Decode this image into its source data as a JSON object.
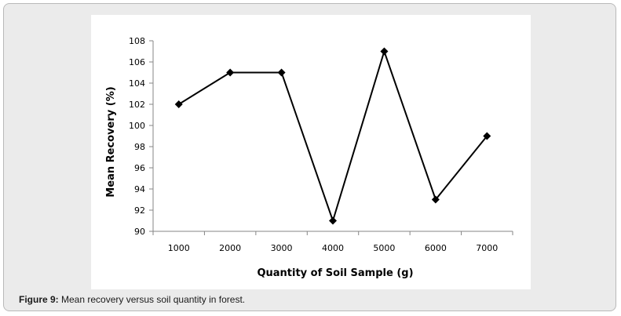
{
  "caption": {
    "label": "Figure 9:",
    "text": " Mean recovery versus soil quantity in forest."
  },
  "chart_data": {
    "type": "line",
    "title": "",
    "xlabel": "Quantity of Soil Sample (g)",
    "ylabel": "Mean Recovery (%)",
    "categories": [
      "1000",
      "2000",
      "3000",
      "4000",
      "5000",
      "6000",
      "7000"
    ],
    "values": [
      102,
      105,
      105,
      91,
      107,
      93,
      99
    ],
    "ylim": [
      90,
      108
    ],
    "yticks": [
      "90",
      "92",
      "94",
      "96",
      "98",
      "100",
      "102",
      "104",
      "106",
      "108"
    ],
    "marker": "diamond",
    "grid": false,
    "legend": "none",
    "line_color": "#000000"
  }
}
